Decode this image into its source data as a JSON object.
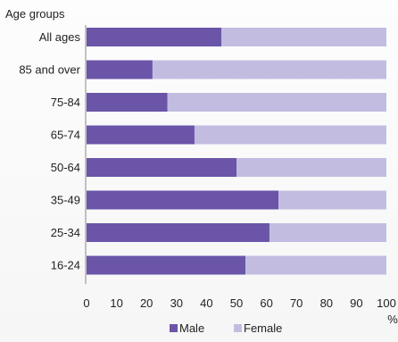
{
  "chart_data": {
    "type": "bar",
    "orientation": "horizontal",
    "stacked": true,
    "y_axis_title": "Age groups",
    "x_unit_label": "%",
    "categories": [
      "All ages",
      "85 and over",
      "75-84",
      "65-74",
      "50-64",
      "35-49",
      "25-34",
      "16-24"
    ],
    "series": [
      {
        "name": "Male",
        "values": [
          45,
          22,
          27,
          36,
          50,
          64,
          61,
          53
        ],
        "color": "#6a55a8"
      },
      {
        "name": "Female",
        "values": [
          55,
          78,
          73,
          64,
          50,
          36,
          39,
          47
        ],
        "color": "#c2bde0"
      }
    ],
    "xlim": [
      0,
      100
    ],
    "x_ticks": [
      "0",
      "10",
      "20",
      "30",
      "40",
      "50",
      "60",
      "70",
      "80",
      "90",
      "100"
    ],
    "legend_position": "bottom",
    "grid": false
  }
}
